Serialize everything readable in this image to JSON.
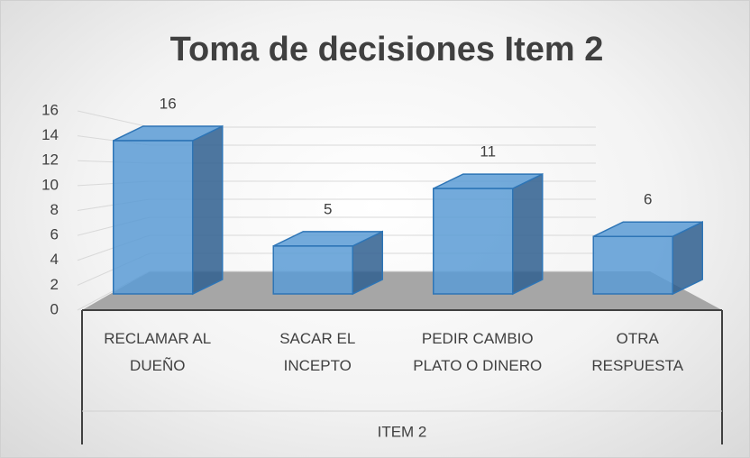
{
  "chart_data": {
    "type": "bar",
    "title": "Toma de decisiones Item 2",
    "categories": [
      "RECLAMAR AL DUEÑO",
      "SACAR EL INCEPTO",
      "PEDIR CAMBIO PLATO O DINERO",
      "OTRA RESPUESTA"
    ],
    "group_label": "ITEM 2",
    "values": [
      16,
      5,
      11,
      6
    ],
    "color": "#5b9bd5",
    "ylim": [
      0,
      16
    ],
    "yticks": [
      0,
      2,
      4,
      6,
      8,
      10,
      12,
      14,
      16
    ],
    "grid": true
  }
}
